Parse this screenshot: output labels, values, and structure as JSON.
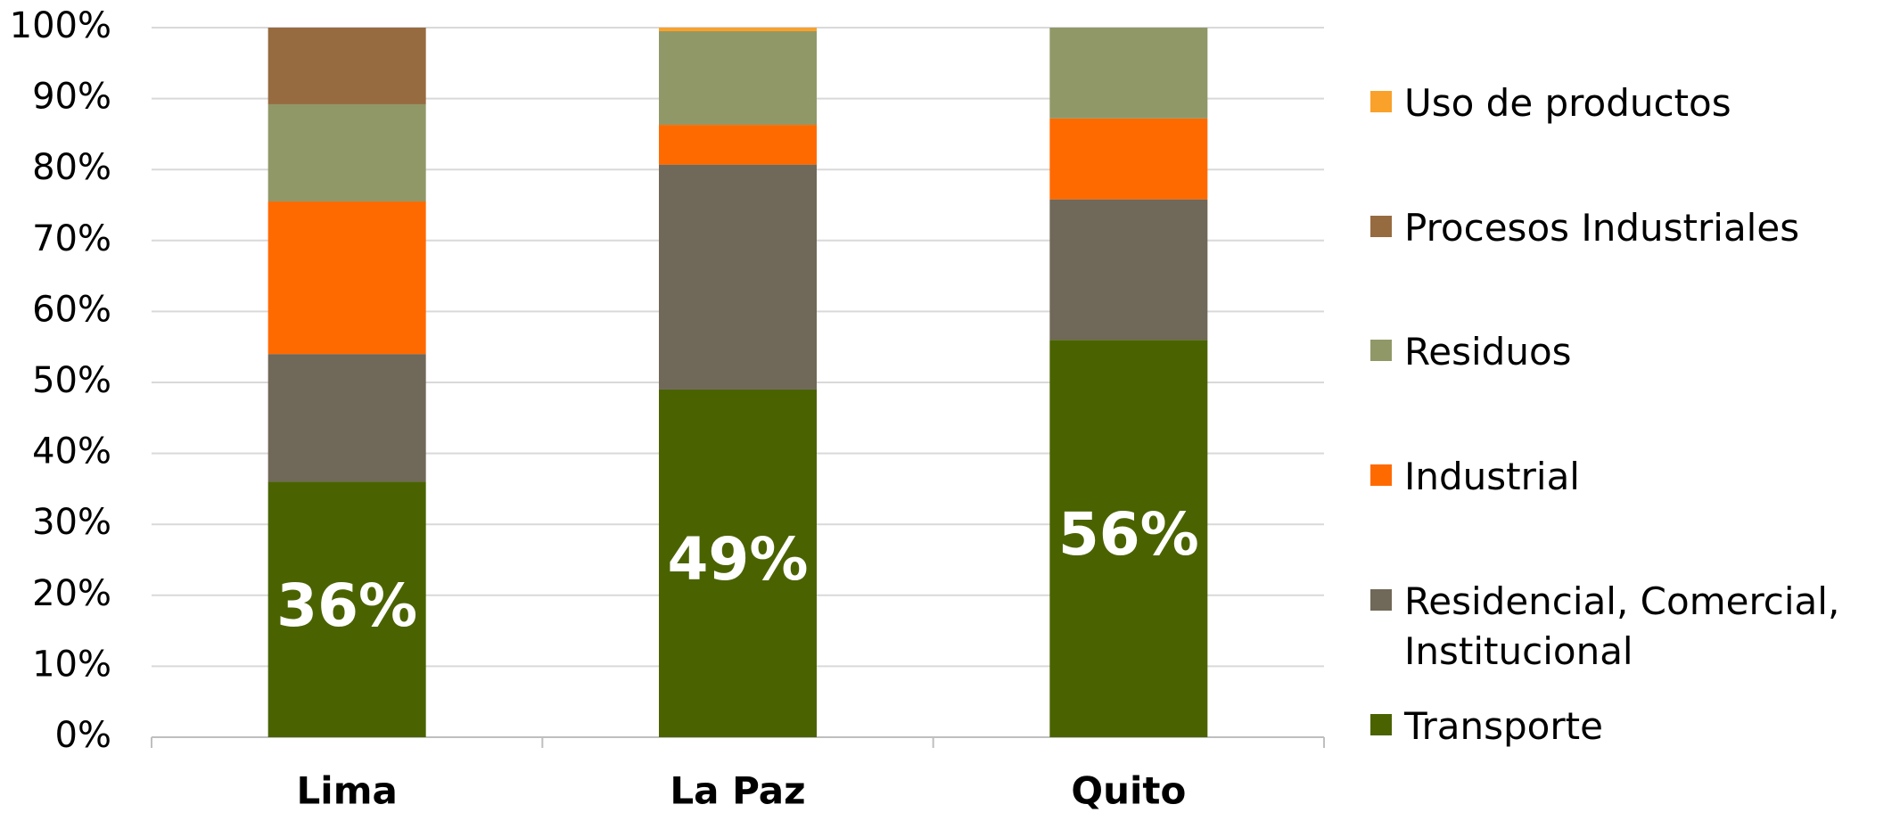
{
  "chart_data": {
    "type": "stacked_bar",
    "categories": [
      "Lima",
      "La Paz",
      "Quito"
    ],
    "series": [
      {
        "name": "Transporte",
        "color": "#4a6300",
        "values": [
          36,
          49,
          56
        ],
        "value_labels": [
          "36%",
          "49%",
          "56%"
        ]
      },
      {
        "name": "Residencial, Comercial, Institucional",
        "color": "#706858",
        "values": [
          18,
          31.7,
          19.8
        ]
      },
      {
        "name": "Industrial",
        "color": "#ff6a00",
        "values": [
          21.5,
          5.6,
          11.4
        ]
      },
      {
        "name": "Residuos",
        "color": "#919868",
        "values": [
          13.7,
          13.2,
          12.8
        ]
      },
      {
        "name": "Procesos Industriales",
        "color": "#966b40",
        "values": [
          10.8,
          0,
          0
        ]
      },
      {
        "name": "Uso de productos",
        "color": "#f9a12a",
        "values": [
          0,
          0.5,
          0
        ]
      }
    ],
    "ylim": [
      0,
      100
    ],
    "yticks": [
      {
        "value": 0,
        "label": "0%"
      },
      {
        "value": 10,
        "label": "10%"
      },
      {
        "value": 20,
        "label": "20%"
      },
      {
        "value": 30,
        "label": "30%"
      },
      {
        "value": 40,
        "label": "40%"
      },
      {
        "value": 50,
        "label": "50%"
      },
      {
        "value": 60,
        "label": "60%"
      },
      {
        "value": 70,
        "label": "70%"
      },
      {
        "value": 80,
        "label": "80%"
      },
      {
        "value": 90,
        "label": "90%"
      },
      {
        "value": 100,
        "label": "100%"
      }
    ],
    "grid": true,
    "legend": "right"
  }
}
